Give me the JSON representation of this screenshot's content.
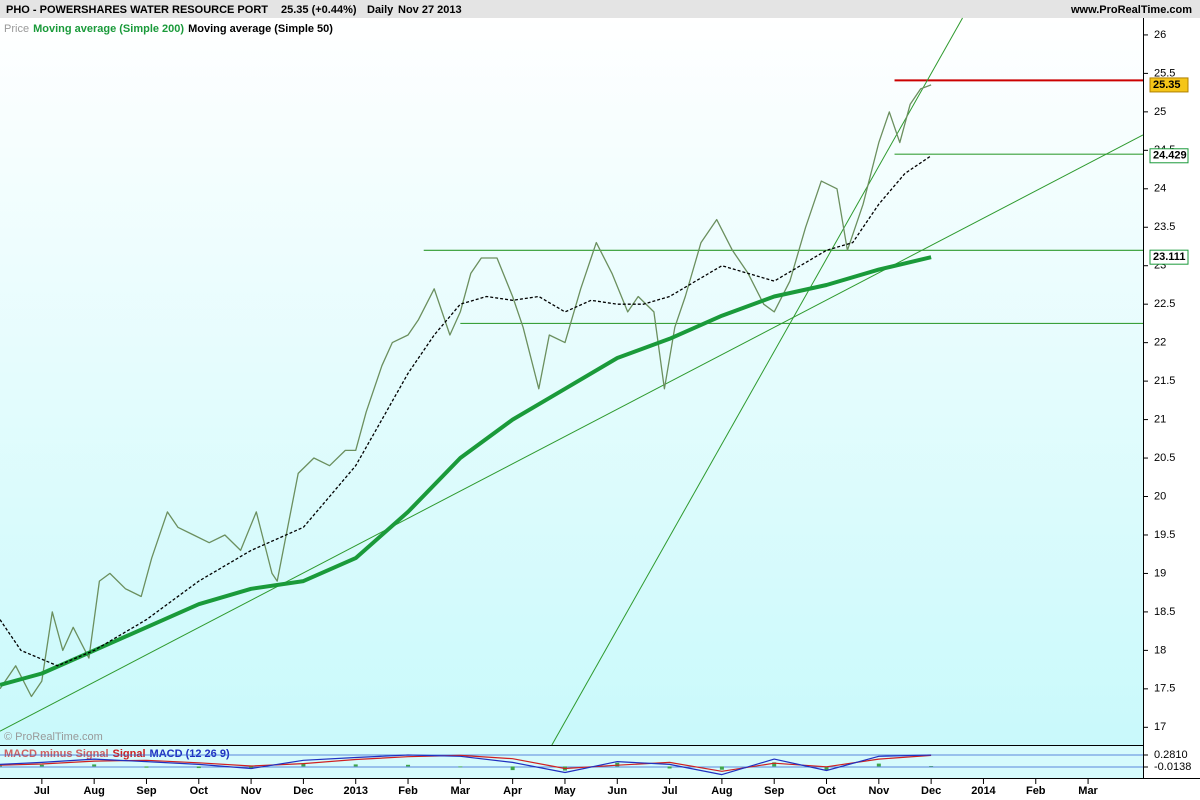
{
  "header": {
    "symbol_title": "PHO - POWERSHARES WATER RESOURCE PORT",
    "quote": "25.35 (+0.44%)",
    "interval": "Daily",
    "date": "Nov 27 2013",
    "source": "www.ProRealTime.com",
    "watermark": "© ProRealTime.com"
  },
  "chart_data": [
    {
      "type": "line",
      "xlim": [
        -0.8,
        21.05
      ],
      "ylim": [
        16.77,
        26.22
      ],
      "xticks": [
        {
          "value": 0,
          "label": "Jul"
        },
        {
          "value": 1,
          "label": "Aug"
        },
        {
          "value": 2,
          "label": "Sep"
        },
        {
          "value": 3,
          "label": "Oct"
        },
        {
          "value": 4,
          "label": "Nov"
        },
        {
          "value": 5,
          "label": "Dec"
        },
        {
          "value": 6,
          "label": "2013"
        },
        {
          "value": 7,
          "label": "Feb"
        },
        {
          "value": 8,
          "label": "Mar"
        },
        {
          "value": 9,
          "label": "Apr"
        },
        {
          "value": 10,
          "label": "May"
        },
        {
          "value": 11,
          "label": "Jun"
        },
        {
          "value": 12,
          "label": "Jul"
        },
        {
          "value": 13,
          "label": "Aug"
        },
        {
          "value": 14,
          "label": "Sep"
        },
        {
          "value": 15,
          "label": "Oct"
        },
        {
          "value": 16,
          "label": "Nov"
        },
        {
          "value": 17,
          "label": "Dec"
        },
        {
          "value": 18,
          "label": "2014"
        },
        {
          "value": 19,
          "label": "Feb"
        },
        {
          "value": 20,
          "label": "Mar"
        }
      ],
      "yticks": [
        17,
        17.5,
        18,
        18.5,
        19,
        19.5,
        20,
        20.5,
        21,
        21.5,
        22,
        22.5,
        23,
        23.5,
        24,
        24.5,
        25,
        25.5,
        26
      ],
      "series": [
        {
          "name": "Price",
          "color": "#6b8f5e",
          "line_style": "solid",
          "tag_color": "#f5c518",
          "x": [
            -0.8,
            -0.5,
            -0.2,
            0,
            0.2,
            0.4,
            0.6,
            0.9,
            1.1,
            1.3,
            1.6,
            1.9,
            2.1,
            2.4,
            2.6,
            2.9,
            3.2,
            3.5,
            3.8,
            4.1,
            4.4,
            4.5,
            4.7,
            4.9,
            5.2,
            5.5,
            5.8,
            6.0,
            6.2,
            6.5,
            6.7,
            7.0,
            7.2,
            7.5,
            7.8,
            8.0,
            8.2,
            8.4,
            8.7,
            9.0,
            9.2,
            9.5,
            9.7,
            10.0,
            10.3,
            10.6,
            10.9,
            11.2,
            11.4,
            11.7,
            11.9,
            12.1,
            12.3,
            12.6,
            12.9,
            13.2,
            13.5,
            13.8,
            14.0,
            14.3,
            14.6,
            14.9,
            15.2,
            15.4,
            15.7,
            16.0,
            16.2,
            16.4,
            16.6,
            16.8,
            17.0
          ],
          "values": [
            17.5,
            17.8,
            17.4,
            17.6,
            18.5,
            18.0,
            18.3,
            17.9,
            18.9,
            19.0,
            18.8,
            18.7,
            19.2,
            19.8,
            19.6,
            19.5,
            19.4,
            19.5,
            19.3,
            19.8,
            19.0,
            18.9,
            19.6,
            20.3,
            20.5,
            20.4,
            20.6,
            20.6,
            21.1,
            21.7,
            22.0,
            22.1,
            22.3,
            22.7,
            22.1,
            22.4,
            22.9,
            23.1,
            23.1,
            22.6,
            22.2,
            21.4,
            22.1,
            22.0,
            22.7,
            23.3,
            22.9,
            22.4,
            22.6,
            22.4,
            21.4,
            22.2,
            22.6,
            23.3,
            23.6,
            23.2,
            22.9,
            22.5,
            22.4,
            22.8,
            23.5,
            24.1,
            24.0,
            23.2,
            23.8,
            24.6,
            25.0,
            24.6,
            25.1,
            25.3,
            25.35
          ]
        },
        {
          "name": "Moving average (Simple 200)",
          "color": "#1a9a3a",
          "line_style": "thick",
          "tag_color": "#ffffff",
          "x": [
            -0.8,
            0,
            1,
            2,
            3,
            4,
            5,
            6,
            7,
            8,
            9,
            10,
            11,
            12,
            13,
            14,
            15,
            16,
            17
          ],
          "values": [
            17.55,
            17.7,
            18.0,
            18.3,
            18.6,
            18.8,
            18.9,
            19.2,
            19.8,
            20.5,
            21.0,
            21.4,
            21.8,
            22.05,
            22.35,
            22.6,
            22.75,
            22.95,
            23.111
          ]
        },
        {
          "name": "Moving average (Simple 50)",
          "color": "#000000",
          "line_style": "dashed",
          "tag_color": "#ffffff",
          "x": [
            -0.8,
            -0.4,
            0.3,
            1,
            2,
            3,
            4,
            5,
            5.5,
            6,
            6.5,
            7,
            7.5,
            8,
            8.5,
            9,
            9.5,
            10,
            10.5,
            11,
            11.5,
            12,
            12.5,
            13,
            13.5,
            14,
            14.5,
            15,
            15.5,
            16,
            16.5,
            17
          ],
          "values": [
            18.4,
            18.0,
            17.8,
            18.0,
            18.4,
            18.9,
            19.3,
            19.6,
            20.0,
            20.4,
            21.0,
            21.6,
            22.1,
            22.5,
            22.6,
            22.55,
            22.6,
            22.4,
            22.55,
            22.5,
            22.5,
            22.6,
            22.8,
            23.0,
            22.9,
            22.8,
            23.0,
            23.2,
            23.3,
            23.8,
            24.2,
            24.429
          ]
        }
      ],
      "hlines": [
        {
          "value": 25.41,
          "x_start": 16.3,
          "color": "#cc0000"
        },
        {
          "value": 24.45,
          "x_start": 16.3,
          "color": "#3aa03a"
        },
        {
          "value": 23.2,
          "x_start": 7.3,
          "color": "#2e9a2e"
        },
        {
          "value": 22.25,
          "x_start": 8.0,
          "color": "#3aa03a"
        }
      ],
      "trendlines": [
        {
          "x": [
            -0.8,
            21.05
          ],
          "y": [
            16.95,
            24.7
          ],
          "color": "#2e9a2e"
        },
        {
          "x": [
            9.75,
            17.6
          ],
          "y": [
            16.77,
            26.22
          ],
          "color": "#2e9a2e"
        }
      ]
    },
    {
      "type": "line",
      "ylim": [
        -0.284,
        0.502
      ],
      "yticks": [
        {
          "value": 0.281,
          "label": "0.2810"
        },
        {
          "value": -0.0138,
          "label": "-0.0138"
        }
      ],
      "series": [
        {
          "name": "MACD minus Signal",
          "color": "#3fa64a",
          "line_style": "bars",
          "x": [
            -0.8,
            0,
            1,
            2,
            3,
            4,
            5,
            6,
            7,
            8,
            9,
            10,
            11,
            12,
            13,
            14,
            15,
            16,
            17
          ],
          "values": [
            0.02,
            0.04,
            0.05,
            -0.03,
            -0.04,
            -0.06,
            0.08,
            0.05,
            0.04,
            -0.02,
            -0.09,
            -0.1,
            0.09,
            -0.05,
            -0.08,
            0.1,
            -0.09,
            0.07,
            0.01
          ]
        },
        {
          "name": "Signal",
          "color": "#d02020",
          "line_style": "solid",
          "x": [
            -0.8,
            0,
            1,
            2,
            3,
            4,
            5,
            6,
            7,
            8,
            9,
            10,
            11,
            12,
            13,
            14,
            15,
            16,
            17
          ],
          "values": [
            0.03,
            0.06,
            0.13,
            0.15,
            0.09,
            0.01,
            0.07,
            0.17,
            0.24,
            0.27,
            0.19,
            -0.05,
            0.03,
            0.1,
            -0.12,
            0.08,
            -0.01,
            0.18,
            0.27
          ]
        },
        {
          "name": "MACD (12 26 9)",
          "color": "#2030c0",
          "line_style": "solid",
          "x": [
            -0.8,
            0,
            1,
            2,
            3,
            4,
            5,
            6,
            7,
            8,
            9,
            10,
            11,
            12,
            13,
            14,
            15,
            16,
            17
          ],
          "values": [
            0.05,
            0.1,
            0.18,
            0.12,
            0.05,
            -0.05,
            0.15,
            0.22,
            0.28,
            0.25,
            0.1,
            -0.15,
            0.12,
            0.05,
            -0.2,
            0.18,
            -0.1,
            0.25,
            0.281
          ]
        }
      ]
    }
  ]
}
